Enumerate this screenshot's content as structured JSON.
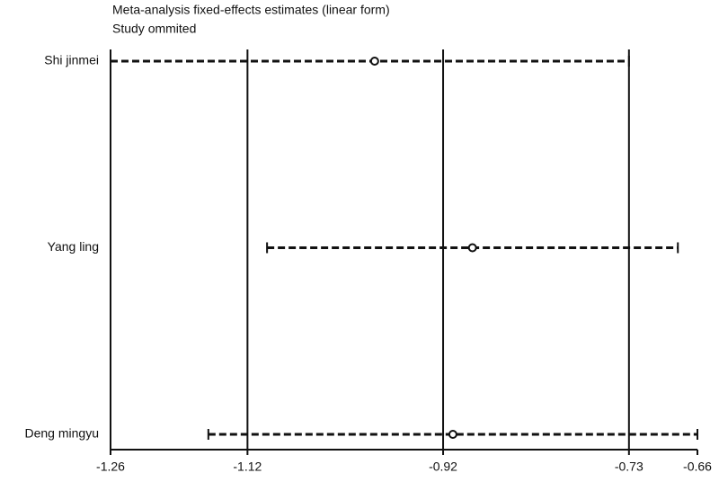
{
  "chart_data": {
    "type": "forest",
    "title": "Meta-analysis fixed-effects estimates (linear form)",
    "subtitle": "Study ommited",
    "categories": [
      "Shi jinmei",
      "Yang ling",
      "Deng mingyu"
    ],
    "values": [
      -0.99,
      -0.89,
      -0.91
    ],
    "lower": [
      -1.26,
      -1.1,
      -1.16
    ],
    "upper": [
      -0.73,
      -0.68,
      -0.66
    ],
    "color": "#111111",
    "xlim": [
      -1.26,
      -0.66
    ],
    "xticks": [
      -1.26,
      -1.12,
      -0.92,
      -0.73,
      -0.66
    ],
    "grid": true
  }
}
